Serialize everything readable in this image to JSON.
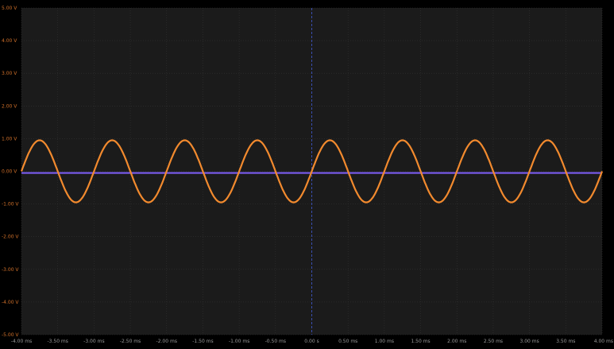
{
  "chart_data": {
    "type": "line",
    "title": "",
    "xlabel": "",
    "ylabel": "",
    "xlim": [
      -4.0,
      4.0
    ],
    "ylim": [
      -5.0,
      5.0
    ],
    "x_unit": "ms",
    "y_unit": "V",
    "grid": true,
    "x_ticks": [
      "-4.00 ms",
      "-3.50 ms",
      "-3.00 ms",
      "-2.50 ms",
      "-2.00 ms",
      "-1.50 ms",
      "-1.00 ms",
      "-0.50 ms",
      "0.00 s",
      "0.50 ms",
      "1.00 ms",
      "1.50 ms",
      "2.00 ms",
      "2.50 ms",
      "3.00 ms",
      "3.50 ms",
      "4.00 ms"
    ],
    "x_tick_values": [
      -4,
      -3.5,
      -3,
      -2.5,
      -2,
      -1.5,
      -1,
      -0.5,
      0,
      0.5,
      1,
      1.5,
      2,
      2.5,
      3,
      3.5,
      4
    ],
    "y_ticks": [
      "5.00 V",
      "4.00 V",
      "3.00 V",
      "2.00 V",
      "1.00 V",
      "0.00 V",
      "-1.00 V",
      "-2.00 V",
      "-3.00 V",
      "-4.00 V",
      "-5.00 V"
    ],
    "y_tick_values": [
      5,
      4,
      3,
      2,
      1,
      0,
      -1,
      -2,
      -3,
      -4,
      -5
    ],
    "series": [
      {
        "color": "#f28a2e",
        "x_step_ms": 0.125,
        "x_start_ms": -4.0,
        "values": [
          0,
          0.67,
          0.95,
          0.67,
          0,
          -0.67,
          -0.95,
          -0.67,
          0,
          0.67,
          0.95,
          0.67,
          0,
          -0.67,
          -0.95,
          -0.67,
          0,
          0.67,
          0.95,
          0.67,
          0,
          -0.67,
          -0.95,
          -0.67,
          0,
          0.67,
          0.95,
          0.67,
          0,
          -0.67,
          -0.95,
          -0.67,
          0,
          0.67,
          0.95,
          0.67,
          0,
          -0.67,
          -0.95,
          -0.67,
          0,
          0.67,
          0.95,
          0.67,
          0,
          -0.67,
          -0.95,
          -0.67,
          0,
          0.67,
          0.95,
          0.67,
          0,
          -0.67,
          -0.95,
          -0.67,
          0,
          0.67,
          0.95,
          0.67,
          0,
          -0.67,
          -0.95,
          -0.67,
          0
        ]
      },
      {
        "color": "#7b5cf0",
        "x": [
          -4.0,
          4.0
        ],
        "values": [
          -0.05,
          -0.05
        ]
      }
    ],
    "colors": {
      "background": "#1b1b1b",
      "grid": "#333333",
      "tick_label": "#d0702a",
      "x_tick_label": "#9a9a9a",
      "center_marker": "#3a4fb0"
    }
  }
}
